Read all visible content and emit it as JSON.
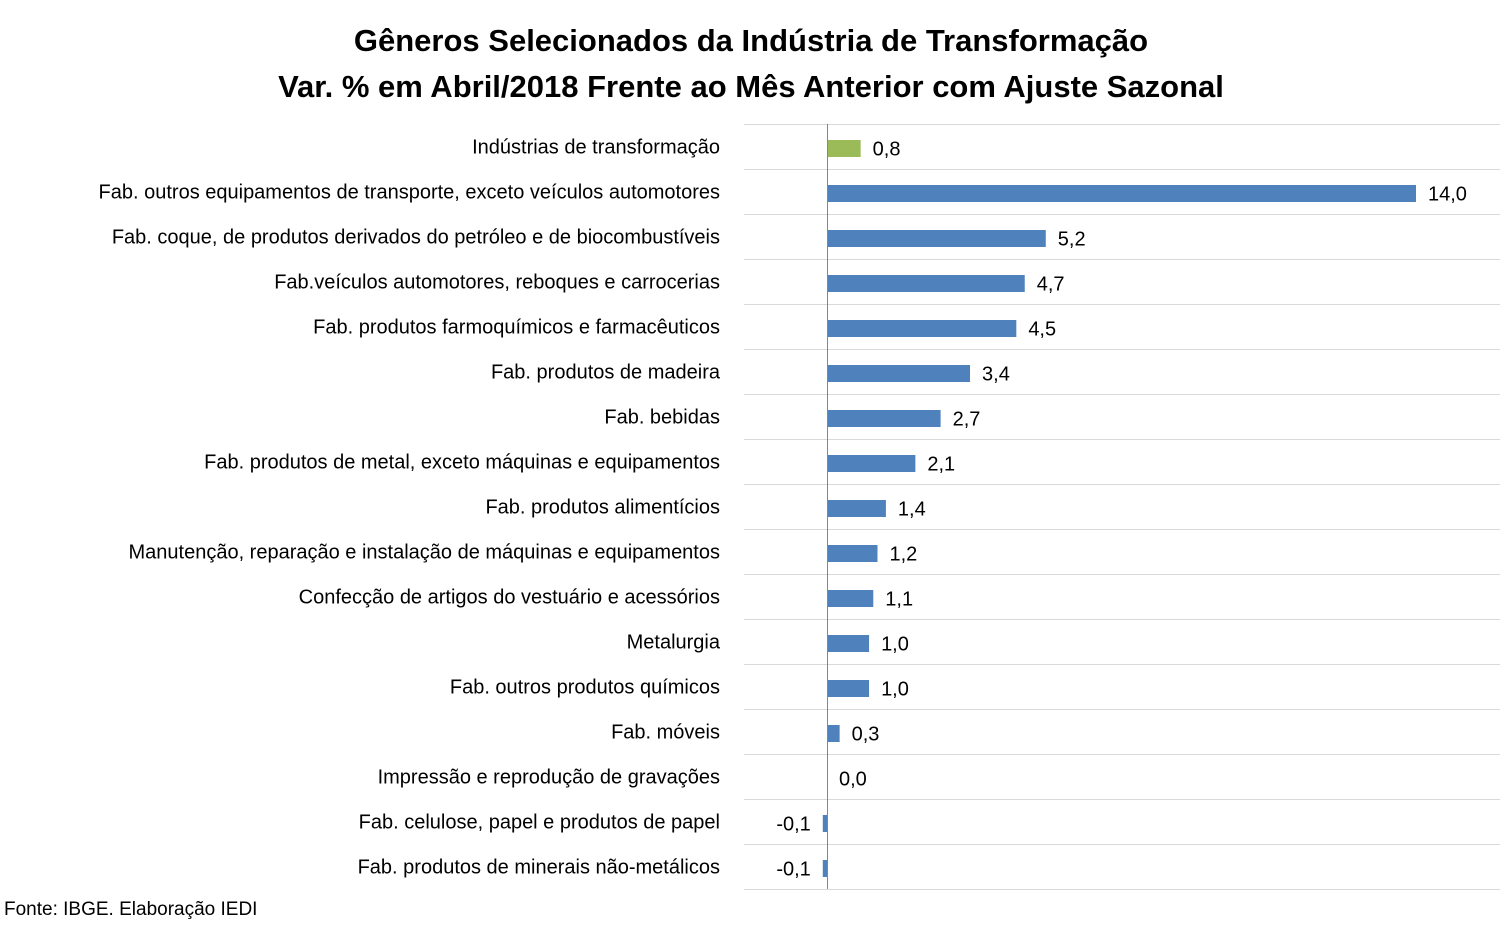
{
  "chart_data": {
    "type": "bar",
    "orientation": "horizontal",
    "title": "Gêneros Selecionados da Indústria de Transformação",
    "subtitle": "Var. % em Abril/2018 Frente ao Mês Anterior com Ajuste Sazonal",
    "categories": [
      "Indústrias de transformação",
      "Fab. outros equipamentos de transporte, exceto veículos automotores",
      "Fab. coque, de produtos derivados do petróleo e de biocombustíveis",
      "Fab.veículos automotores, reboques e carrocerias",
      "Fab. produtos farmoquímicos e farmacêuticos",
      "Fab. produtos de madeira",
      "Fab. bebidas",
      "Fab. produtos de metal, exceto máquinas e equipamentos",
      "Fab. produtos alimentícios",
      "Manutenção, reparação e instalação de máquinas e equipamentos",
      "Confecção de artigos do vestuário e acessórios",
      "Metalurgia",
      "Fab. outros produtos químicos",
      "Fab. móveis",
      "Impressão e reprodução de gravações",
      "Fab. celulose, papel e produtos de papel",
      "Fab. produtos de minerais não-metálicos"
    ],
    "values": [
      0.8,
      14.0,
      5.2,
      4.7,
      4.5,
      3.4,
      2.7,
      2.1,
      1.4,
      1.2,
      1.1,
      1.0,
      1.0,
      0.3,
      0.0,
      -0.1,
      -0.1
    ],
    "value_labels": [
      "0,8",
      "14,0",
      "5,2",
      "4,7",
      "4,5",
      "3,4",
      "2,7",
      "2,1",
      "1,4",
      "1,2",
      "1,1",
      "1,0",
      "1,0",
      "0,3",
      "0,0",
      "-0,1",
      "-0,1"
    ],
    "bar_colors": [
      "#9bbb59",
      "#4f81bd",
      "#4f81bd",
      "#4f81bd",
      "#4f81bd",
      "#4f81bd",
      "#4f81bd",
      "#4f81bd",
      "#4f81bd",
      "#4f81bd",
      "#4f81bd",
      "#4f81bd",
      "#4f81bd",
      "#4f81bd",
      "#4f81bd",
      "#4f81bd",
      "#4f81bd"
    ],
    "xlim": [
      -2.0,
      16.0
    ],
    "gridlines": "horizontal separators between categories",
    "legend": "none"
  },
  "source": "Fonte: IBGE. Elaboração IEDI"
}
